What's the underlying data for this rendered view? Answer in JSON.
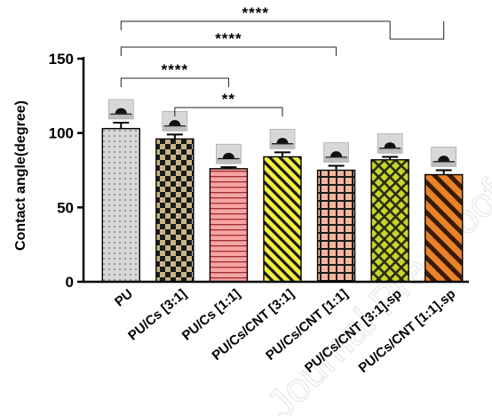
{
  "chart_data": {
    "type": "bar",
    "categories": [
      "PU",
      "PU/Cs [3:1]",
      "PU/Cs [1:1]",
      "PU/Cs/CNT [3:1]",
      "PU/Cs/CNT [1:1]",
      "PU/Cs/CNT [3:1].sp",
      "PU/Cs/CNT [1:1].sp"
    ],
    "values": [
      103,
      96,
      76,
      84,
      75,
      82,
      72
    ],
    "errors": [
      4,
      3,
      1,
      3,
      3,
      2,
      3
    ],
    "ylabel": "Contact angle(degree)",
    "ylim": [
      0,
      150
    ],
    "yticks": [
      0,
      50,
      100,
      150
    ],
    "grid": false,
    "legend": "none",
    "significance": [
      {
        "from": 0,
        "to": 2,
        "label": "****"
      },
      {
        "from": 1,
        "to": 3,
        "label": "**"
      },
      {
        "from": 0,
        "to": 4,
        "label": "****"
      },
      {
        "from": 0,
        "to": 5,
        "label": "****"
      }
    ],
    "bar_patterns": [
      "dots",
      "checker",
      "horizontal-lines",
      "diagonal-lines",
      "grid",
      "crosshatch",
      "wide-diagonal"
    ],
    "bar_colors": [
      "#d8d8d8",
      "#c8b487",
      "#f29b9b",
      "#f4f23c",
      "#f4b896",
      "#c6d62c",
      "#e8832a"
    ]
  },
  "watermark": "Journal Pre-proof"
}
